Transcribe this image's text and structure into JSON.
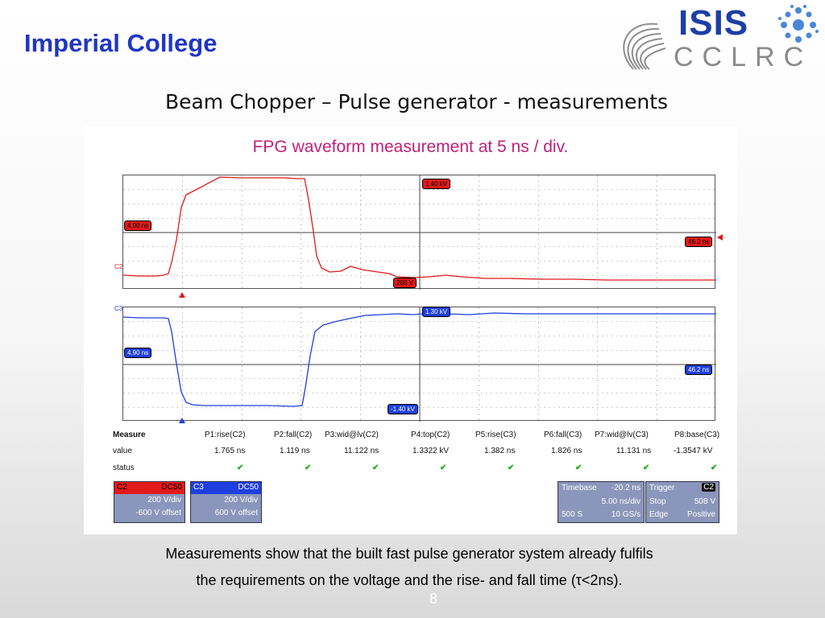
{
  "header": {
    "college": "Imperial College",
    "logo_line1": "ISIS",
    "logo_line2": "CCLRC"
  },
  "slide": {
    "title": "Beam Chopper – Pulse generator - measurements",
    "caption_line1": "Measurements show that the built fast pulse generator system already fulfils",
    "caption_line2": "the requirements on the voltage and the rise- and fall time (τ<2ns).",
    "page_number": "8"
  },
  "scope": {
    "title": "FPG waveform measurement at 5 ns / div.",
    "trace_colors": {
      "C2": "#e21a1a",
      "C3": "#1f3fe0"
    },
    "channel_c2": "C2",
    "channel_c3": "C3",
    "tags": {
      "c2_left": "4.90 ns",
      "c2_top": "1.40 kV",
      "c2_right": "46.2 ns",
      "c2_bottom": "200 V",
      "c3_left": "4.90 ns",
      "c3_top": "1.30 kV",
      "c3_right": "46.2 ns",
      "c3_bottom": "-1.40 kV"
    },
    "measure": {
      "label": "Measure",
      "params": [
        "P1:rise(C2)",
        "P2:fall(C2)",
        "P3:wid@lv(C2)",
        "P4:top(C2)",
        "P5:rise(C3)",
        "P6:fall(C3)",
        "P7:wid@lv(C3)",
        "P8:base(C3)"
      ],
      "value_label": "value",
      "values": [
        "1.765 ns",
        "1.119 ns",
        "11.122 ns",
        "1.3322 kV",
        "1.382 ns",
        "1.826 ns",
        "11.131 ns",
        "-1.3547 kV"
      ],
      "status_label": "status",
      "status_mark": "✔"
    },
    "c2_box": {
      "name": "C2",
      "coupling": "DC50",
      "scale": "200 V/div",
      "offset": "-600 V offset"
    },
    "c3_box": {
      "name": "C3",
      "coupling": "DC50",
      "scale": "200 V/div",
      "offset": "600 V offset"
    },
    "timebase": {
      "label": "Timebase",
      "delay": "-20.2 ns",
      "per_div": "5.00 ns/div",
      "samples": "500 S",
      "rate": "10 GS/s"
    },
    "trigger": {
      "label": "Trigger",
      "channel": "C2",
      "mode_label": "Stop",
      "level": "508 V",
      "type_label": "Edge",
      "slope": "Positive"
    }
  }
}
